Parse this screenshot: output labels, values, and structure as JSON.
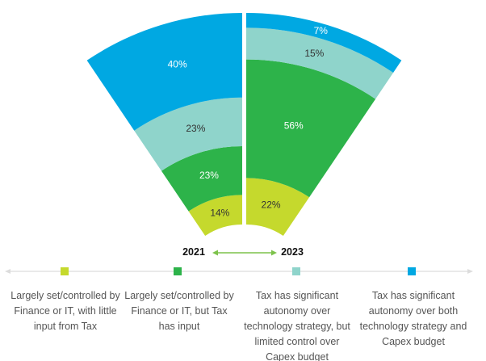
{
  "chart_data": {
    "type": "radial-stacked-fan",
    "categories": [
      "2021",
      "2023"
    ],
    "series": [
      {
        "name": "Largely set/controlled by Finance or IT, with little input from Tax",
        "color": "#c5d92d",
        "values": [
          14,
          22
        ],
        "label_color": "#333333"
      },
      {
        "name": "Largely set/controlled by Finance or IT, but Tax has input",
        "color": "#2db34a",
        "values": [
          23,
          56
        ],
        "label_color": "#ffffff"
      },
      {
        "name": "Tax has significant autonomy over technology strategy, but limited control over Capex budget",
        "color": "#8fd4cb",
        "values": [
          23,
          15
        ],
        "label_color": "#333333"
      },
      {
        "name": "Tax has significant autonomy over both technology strategy and Capex budget",
        "color": "#00a8e2",
        "values": [
          40,
          7
        ],
        "label_color": "#ffffff"
      }
    ],
    "data_labels": [
      [
        "14%",
        "22%"
      ],
      [
        "23%",
        "56%"
      ],
      [
        "23%",
        "15%"
      ],
      [
        "40%",
        "7%"
      ]
    ],
    "legend_placement": "bottom",
    "arrow_color": "#7dc24b"
  },
  "years": {
    "left": "2021",
    "right": "2023"
  },
  "legend": [
    "Largely set/controlled by Finance or IT, with little input from Tax",
    "Largely set/controlled by Finance or IT, but Tax has input",
    "Tax has significant autonomy over technology strategy, but limited control over Capex budget",
    "Tax has significant autonomy over both technology strategy and Capex budget"
  ]
}
